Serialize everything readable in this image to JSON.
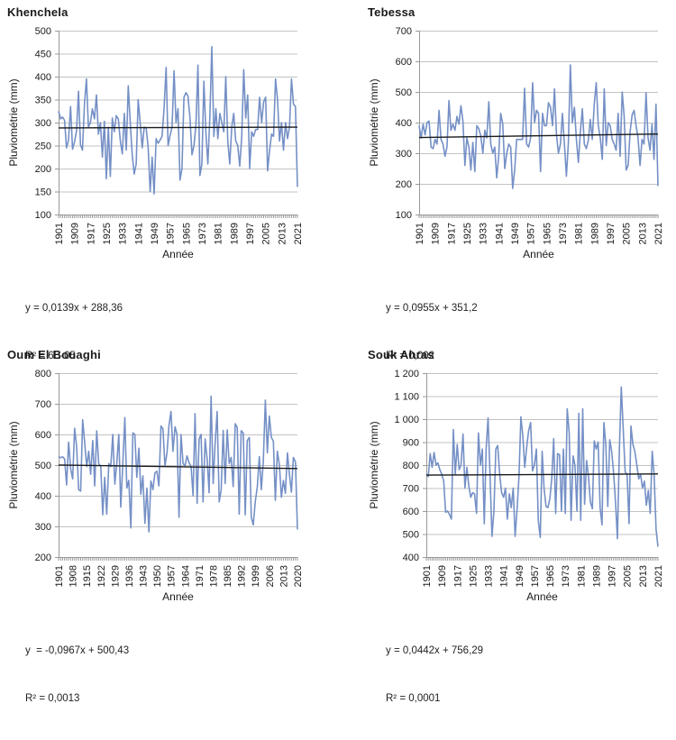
{
  "colors": {
    "series": "#7590c6",
    "trend": "#1a1a1a",
    "grid": "#c3c3c3",
    "axis": "#999999",
    "text": "#1a1a1a"
  },
  "chart_data": [
    {
      "type": "line",
      "title": "Khenchela",
      "ylabel": "Pluviométrie (mm)",
      "xlabel": "Année",
      "equation": "y = 0,0139x + 288,36",
      "r2": "R² = 6E-05",
      "x_start": 1901,
      "x_end": 2021,
      "y_min": 100,
      "y_max": 500,
      "y_ticks": [
        "100",
        "150",
        "200",
        "250",
        "300",
        "350",
        "400",
        "450",
        "500"
      ],
      "x_tick_labels": [
        "1901",
        "1909",
        "1917",
        "1925",
        "1933",
        "1941",
        "1949",
        "1957",
        "1965",
        "1973",
        "1981",
        "1989",
        "1997",
        "2005",
        "2013",
        "2021"
      ],
      "trend": {
        "slope": 0.0139,
        "intercept": 288.36
      },
      "values": [
        325,
        308,
        312,
        305,
        245,
        262,
        335,
        242,
        258,
        282,
        368,
        252,
        240,
        340,
        395,
        290,
        300,
        330,
        308,
        360,
        275,
        300,
        225,
        303,
        178,
        290,
        183,
        310,
        280,
        315,
        308,
        260,
        232,
        320,
        240,
        380,
        300,
        230,
        188,
        210,
        350,
        300,
        245,
        290,
        288,
        245,
        150,
        225,
        145,
        265,
        255,
        262,
        270,
        330,
        420,
        250,
        272,
        290,
        413,
        300,
        330,
        175,
        200,
        355,
        365,
        358,
        310,
        230,
        250,
        295,
        425,
        185,
        210,
        390,
        280,
        210,
        310,
        465,
        270,
        330,
        265,
        320,
        300,
        280,
        400,
        260,
        210,
        290,
        320,
        260,
        250,
        205,
        270,
        415,
        310,
        360,
        200,
        280,
        270,
        285,
        285,
        355,
        300,
        345,
        355,
        195,
        240,
        275,
        270,
        395,
        350,
        260,
        300,
        240,
        300,
        265,
        290,
        395,
        340,
        335,
        160
      ]
    },
    {
      "type": "line",
      "title": "Tebessa",
      "ylabel": "Pluviométrie (mm)",
      "xlabel": "Année",
      "equation": "y = 0,0955x + 351,2",
      "r2": "R² = 0,002",
      "x_start": 1901,
      "x_end": 2021,
      "y_min": 100,
      "y_max": 700,
      "y_ticks": [
        "100",
        "200",
        "300",
        "400",
        "500",
        "600",
        "700"
      ],
      "x_tick_labels": [
        "1901",
        "1909",
        "1917",
        "1925",
        "1933",
        "1941",
        "1949",
        "1957",
        "1965",
        "1973",
        "1981",
        "1989",
        "1997",
        "2005",
        "2013",
        "2021"
      ],
      "trend": {
        "slope": 0.0955,
        "intercept": 351.2
      },
      "values": [
        390,
        350,
        395,
        360,
        400,
        405,
        320,
        315,
        345,
        330,
        440,
        345,
        330,
        290,
        320,
        472,
        375,
        395,
        375,
        420,
        395,
        455,
        405,
        260,
        350,
        320,
        245,
        335,
        240,
        390,
        380,
        355,
        300,
        375,
        350,
        468,
        330,
        300,
        320,
        220,
        290,
        430,
        395,
        250,
        300,
        330,
        320,
        185,
        245,
        345,
        345,
        345,
        345,
        512,
        330,
        320,
        350,
        530,
        400,
        440,
        430,
        240,
        430,
        390,
        390,
        465,
        450,
        390,
        510,
        360,
        300,
        330,
        430,
        330,
        225,
        335,
        588,
        400,
        450,
        345,
        270,
        370,
        445,
        330,
        315,
        342,
        410,
        345,
        460,
        530,
        390,
        350,
        280,
        510,
        325,
        400,
        390,
        345,
        330,
        310,
        430,
        290,
        500,
        420,
        245,
        260,
        370,
        425,
        440,
        390,
        350,
        260,
        345,
        330,
        497,
        350,
        310,
        395,
        280,
        460,
        193
      ]
    },
    {
      "type": "line",
      "title": "Oum El Bouaghi",
      "ylabel": "Pluviométrie (mm)",
      "xlabel": "Année",
      "equation": "y  = -0,0967x + 500,43",
      "r2": "R² = 0,0013",
      "x_start": 1901,
      "x_end": 2020,
      "y_min": 200,
      "y_max": 800,
      "y_ticks": [
        "200",
        "300",
        "400",
        "500",
        "600",
        "700",
        "800"
      ],
      "x_tick_labels": [
        "1901",
        "1908",
        "1915",
        "1922",
        "1929",
        "1936",
        "1943",
        "1950",
        "1957",
        "1964",
        "1971",
        "1978",
        "1985",
        "1992",
        "1999",
        "2006",
        "2013",
        "2020"
      ],
      "trend": {
        "slope": -0.0967,
        "intercept": 500.43
      },
      "values": [
        528,
        524,
        527,
        520,
        435,
        575,
        488,
        455,
        620,
        560,
        420,
        415,
        648,
        575,
        495,
        545,
        470,
        580,
        432,
        612,
        505,
        495,
        338,
        460,
        340,
        505,
        495,
        600,
        438,
        508,
        600,
        363,
        508,
        655,
        425,
        450,
        295,
        605,
        600,
        460,
        555,
        405,
        465,
        310,
        425,
        282,
        448,
        420,
        475,
        480,
        432,
        628,
        618,
        498,
        540,
        630,
        675,
        545,
        625,
        600,
        330,
        600,
        505,
        498,
        530,
        508,
        495,
        400,
        668,
        375,
        585,
        600,
        380,
        585,
        520,
        410,
        725,
        440,
        572,
        675,
        380,
        420,
        613,
        440,
        615,
        505,
        525,
        430,
        635,
        622,
        340,
        612,
        605,
        338,
        580,
        590,
        330,
        305,
        380,
        430,
        528,
        420,
        510,
        712,
        540,
        660,
        590,
        578,
        385,
        545,
        500,
        395,
        450,
        408,
        540,
        470,
        412,
        525,
        510,
        290
      ]
    },
    {
      "type": "line",
      "title": "Souk Ahras",
      "ylabel": "Pluviométrie (mm)",
      "xlabel": "Année",
      "equation": "y = 0,0442x + 756,29",
      "r2": "R² = 0,0001",
      "x_start": 1901,
      "x_end": 2021,
      "y_min": 400,
      "y_max": 1200,
      "y_ticks": [
        "400",
        "500",
        "600",
        "700",
        "800",
        "900",
        "1 000",
        "1 100",
        "1 200"
      ],
      "x_tick_labels": [
        "1901",
        "1909",
        "1917",
        "1925",
        "1933",
        "1941",
        "1949",
        "1957",
        "1965",
        "1973",
        "1981",
        "1989",
        "1997",
        "2005",
        "2013",
        "2021"
      ],
      "trend": {
        "slope": 0.0442,
        "intercept": 756.29
      },
      "values": [
        760,
        750,
        850,
        790,
        855,
        800,
        810,
        780,
        760,
        730,
        595,
        600,
        585,
        565,
        955,
        760,
        890,
        780,
        800,
        935,
        700,
        790,
        710,
        660,
        680,
        675,
        590,
        940,
        800,
        870,
        545,
        875,
        1005,
        755,
        490,
        600,
        870,
        885,
        760,
        680,
        660,
        700,
        565,
        675,
        615,
        700,
        490,
        610,
        750,
        1010,
        925,
        790,
        880,
        950,
        985,
        775,
        800,
        870,
        560,
        485,
        860,
        700,
        620,
        615,
        655,
        745,
        915,
        590,
        850,
        845,
        600,
        870,
        590,
        1045,
        940,
        560,
        840,
        800,
        600,
        1025,
        560,
        1045,
        630,
        820,
        750,
        640,
        610,
        905,
        870,
        900,
        615,
        540,
        985,
        885,
        620,
        910,
        860,
        770,
        640,
        480,
        870,
        1140,
        960,
        770,
        760,
        545,
        970,
        890,
        860,
        805,
        740,
        760,
        700,
        730,
        625,
        690,
        590,
        860,
        760,
        520,
        445
      ]
    }
  ]
}
